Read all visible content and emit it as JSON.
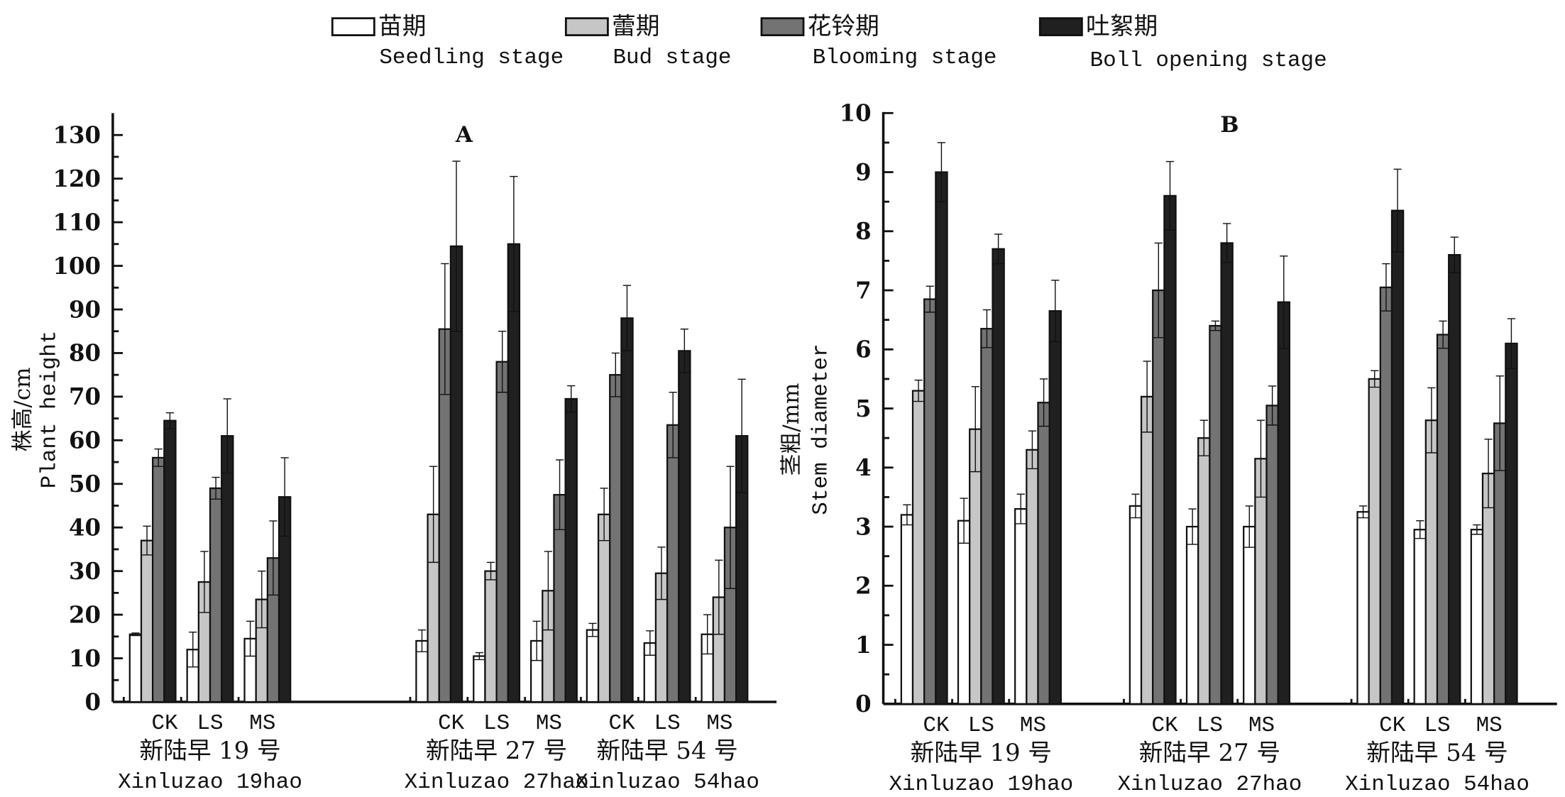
{
  "legend": [
    {
      "zh": "苗期",
      "en": "Seedling stage",
      "color": "#ffffff"
    },
    {
      "zh": "蕾期",
      "en": "Bud stage",
      "color": "#c6c6c6"
    },
    {
      "zh": "花铃期",
      "en": "Blooming stage",
      "color": "#737373"
    },
    {
      "zh": "吐絮期",
      "en": "Boll opening stage",
      "color": "#202020"
    }
  ],
  "chart_data": [
    {
      "type": "bar",
      "title": "A",
      "ylabel_zh": "株高/cm",
      "ylabel_en": "Plant height",
      "ylim": [
        0,
        130
      ],
      "yticks": [
        0,
        10,
        20,
        30,
        40,
        50,
        60,
        70,
        80,
        90,
        100,
        110,
        120,
        130
      ],
      "groups": [
        {
          "zh": "新陆早 19 号",
          "en": "Xinluzao 19hao"
        },
        {
          "zh": "新陆早 27 号",
          "en": "Xinluzao 27hao"
        },
        {
          "zh": "新陆早 54 号",
          "en": "Xinluzao 54hao"
        }
      ],
      "categories": [
        "CK",
        "LS",
        "MS"
      ],
      "series": [
        {
          "name": "Seedling stage",
          "values": [
            [
              15.5,
              12,
              14.5
            ],
            [
              14,
              10.5,
              14
            ],
            [
              16.5,
              13.5,
              15.5
            ]
          ],
          "errors": [
            [
              0.3,
              4,
              4
            ],
            [
              2.5,
              0.8,
              4.5
            ],
            [
              1.5,
              2.8,
              4.5
            ]
          ]
        },
        {
          "name": "Bud stage",
          "values": [
            [
              37,
              27.5,
              23.5
            ],
            [
              43,
              30,
              25.5
            ],
            [
              43,
              29.5,
              24
            ]
          ],
          "errors": [
            [
              3.3,
              7,
              6.5
            ],
            [
              11,
              2,
              9
            ],
            [
              6,
              6,
              8.5
            ]
          ]
        },
        {
          "name": "Blooming stage",
          "values": [
            [
              56,
              49,
              33
            ],
            [
              85.5,
              78,
              47.5
            ],
            [
              75,
              63.5,
              40
            ]
          ],
          "errors": [
            [
              2,
              2.5,
              8.5
            ],
            [
              15,
              7,
              8
            ],
            [
              5,
              7.5,
              14
            ]
          ]
        },
        {
          "name": "Boll opening stage",
          "values": [
            [
              64.5,
              61,
              47
            ],
            [
              104.5,
              105,
              69.5
            ],
            [
              88,
              80.5,
              61
            ]
          ],
          "errors": [
            [
              1.8,
              8.5,
              9
            ],
            [
              19.5,
              15.5,
              3
            ],
            [
              7.5,
              5,
              13
            ]
          ]
        }
      ]
    },
    {
      "type": "bar",
      "title": "B",
      "ylabel_zh": "茎粗/mm",
      "ylabel_en": "Stem diameter",
      "ylim": [
        0,
        10
      ],
      "yticks": [
        0,
        1,
        2,
        3,
        4,
        5,
        6,
        7,
        8,
        9,
        10
      ],
      "groups": [
        {
          "zh": "新陆早 19 号",
          "en": "Xinluzao 19hao"
        },
        {
          "zh": "新陆早 27 号",
          "en": "Xinluzao 27hao"
        },
        {
          "zh": "新陆早 54 号",
          "en": "Xinluzao 54hao"
        }
      ],
      "categories": [
        "CK",
        "LS",
        "MS"
      ],
      "series": [
        {
          "name": "Seedling stage",
          "values": [
            [
              3.2,
              3.1,
              3.3
            ],
            [
              3.35,
              3.0,
              3.0
            ],
            [
              3.25,
              2.95,
              2.95
            ]
          ],
          "errors": [
            [
              0.17,
              0.38,
              0.25
            ],
            [
              0.2,
              0.3,
              0.35
            ],
            [
              0.1,
              0.15,
              0.08
            ]
          ]
        },
        {
          "name": "Bud stage",
          "values": [
            [
              5.3,
              4.65,
              4.3
            ],
            [
              5.2,
              4.5,
              4.15
            ],
            [
              5.5,
              4.8,
              3.9
            ]
          ],
          "errors": [
            [
              0.18,
              0.72,
              0.32
            ],
            [
              0.6,
              0.3,
              0.65
            ],
            [
              0.14,
              0.55,
              0.58
            ]
          ]
        },
        {
          "name": "Blooming stage",
          "values": [
            [
              6.85,
              6.35,
              5.1
            ],
            [
              7.0,
              6.4,
              5.05
            ],
            [
              7.05,
              6.25,
              4.75
            ]
          ],
          "errors": [
            [
              0.22,
              0.32,
              0.4
            ],
            [
              0.8,
              0.08,
              0.33
            ],
            [
              0.4,
              0.23,
              0.8
            ]
          ]
        },
        {
          "name": "Boll opening stage",
          "values": [
            [
              9.0,
              7.7,
              6.65
            ],
            [
              8.6,
              7.8,
              6.8
            ],
            [
              8.35,
              7.6,
              6.1
            ]
          ],
          "errors": [
            [
              0.5,
              0.25,
              0.52
            ],
            [
              0.58,
              0.33,
              0.78
            ],
            [
              0.7,
              0.3,
              0.42
            ]
          ]
        }
      ]
    }
  ]
}
